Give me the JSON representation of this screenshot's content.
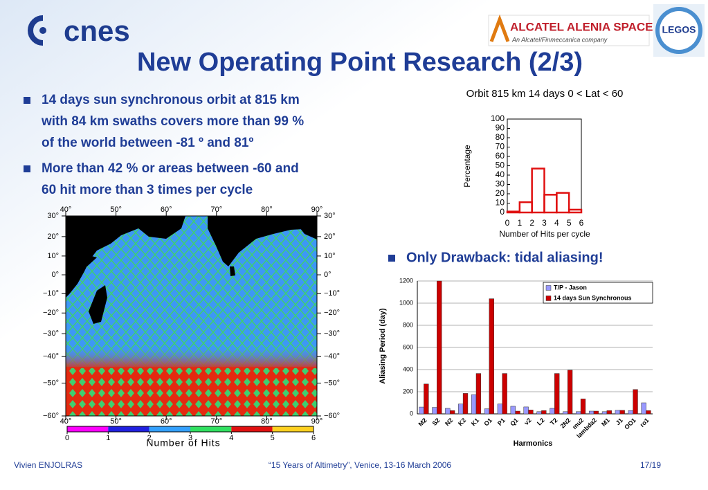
{
  "logo": {
    "cnes": "cnes",
    "partner": "ALCATEL ALENIA SPACE",
    "partner_sub": "An Alcatel/Finmeccanica company",
    "lab": "LEGOS"
  },
  "title": "New Operating Point Research (2/3)",
  "bullets": [
    [
      "14 days sun synchronous orbit at 815 km",
      "with 84 km swaths covers more than 99 %",
      "of the world between -81 º and 81º"
    ],
    [
      "More than 42 % or areas between -60 and",
      "60 hit more than 3 times per cycle"
    ],
    [
      "Only Drawback: tidal aliasing!"
    ]
  ],
  "chart_data": [
    {
      "type": "histogram",
      "title": "Orbit 815 km 14 days 0 < Lat < 60",
      "x_label": "Number of Hits per cycle",
      "y_label": "Percentage",
      "bins": [
        0,
        1,
        2,
        3,
        4,
        5,
        6
      ],
      "values": [
        1,
        11,
        47,
        19,
        21,
        3
      ],
      "color": "#e01010",
      "xlim": [
        0,
        6
      ],
      "xticks": [
        0,
        1,
        2,
        3,
        4,
        5,
        6
      ],
      "ylim": [
        0,
        100
      ],
      "yticks": [
        0,
        10,
        20,
        30,
        40,
        50,
        60,
        70,
        80,
        90,
        100
      ]
    },
    {
      "type": "bar",
      "x_label": "Harmonics",
      "y_label": "Aliasing Period (day)",
      "categories": [
        "M2",
        "S2",
        "N2",
        "K2",
        "K1",
        "O1",
        "P1",
        "Q1",
        "v2",
        "L2",
        "T2",
        "2N2",
        "mu2",
        "lambda2",
        "M1",
        "J1",
        "OO1",
        "ro1"
      ],
      "series": [
        {
          "name": "T/P - Jason",
          "color": "#9999ff",
          "values": [
            62,
            59,
            50,
            89,
            173,
            46,
            89,
            69,
            63,
            20,
            50,
            20,
            20,
            25,
            20,
            32,
            30,
            100
          ]
        },
        {
          "name": "14 days Sun Synchronous",
          "color": "#cc0000",
          "values": [
            270,
            1200,
            30,
            185,
            365,
            1040,
            365,
            25,
            35,
            30,
            365,
            395,
            135,
            25,
            30,
            32,
            220,
            30
          ]
        }
      ],
      "ylim": [
        0,
        1200
      ],
      "yticks": [
        0,
        200,
        400,
        600,
        800,
        1000,
        1200
      ],
      "grid": true,
      "legend": "top-right"
    },
    {
      "type": "map",
      "colorbar_label": "Number of Hits",
      "xlim": [
        40,
        90
      ],
      "xticks": [
        {
          "value": 40,
          "label": "40°"
        },
        {
          "value": 50,
          "label": "50°"
        },
        {
          "value": 60,
          "label": "60°"
        },
        {
          "value": 70,
          "label": "70°"
        },
        {
          "value": 80,
          "label": "80°"
        },
        {
          "value": 90,
          "label": "90°"
        }
      ],
      "ylim": [
        -60,
        30
      ],
      "yticks": [
        {
          "value": 30,
          "label": "30°"
        },
        {
          "value": 20,
          "label": "20°"
        },
        {
          "value": 10,
          "label": "10°"
        },
        {
          "value": 0,
          "label": "0°"
        },
        {
          "value": -10,
          "label": "−10°"
        },
        {
          "value": -20,
          "label": "−20°"
        },
        {
          "value": -30,
          "label": "−30°"
        },
        {
          "value": -40,
          "label": "−40°"
        },
        {
          "value": -50,
          "label": "−50°"
        },
        {
          "value": -60,
          "label": "−60°"
        }
      ],
      "colorbar_ticks": [
        0,
        1,
        2,
        3,
        4,
        5,
        6
      ],
      "colorbar_colors": [
        "#ff00ff",
        "#2020e0",
        "#33a0ff",
        "#30e060",
        "#e01010",
        "#ffd020"
      ]
    }
  ],
  "footer": {
    "author": "Vivien ENJOLRAS",
    "event": "“15 Years of Altimetry”, Venice, 13-16 March 2006",
    "page": "17/19"
  }
}
